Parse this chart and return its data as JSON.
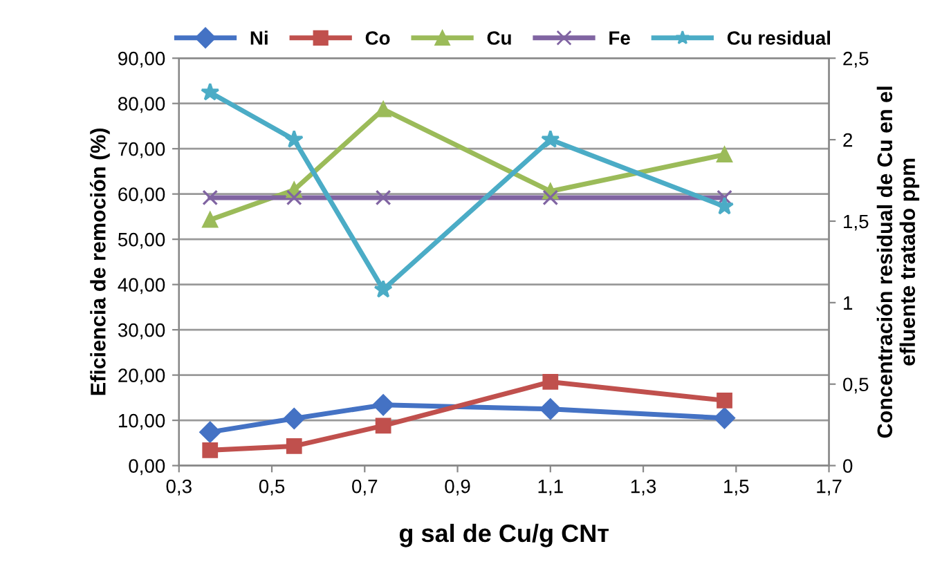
{
  "chart_data": {
    "type": "line",
    "xlabel": "g sal de Cu/g CNт",
    "ylabel": "Eficiencia de remoción (%)",
    "y2label": "Concentración residual de Cu en el\nefluente tratado ppm",
    "x": [
      0.367,
      0.548,
      0.74,
      1.1,
      1.475
    ],
    "series": [
      {
        "name": "Ni",
        "color": "#4472c4",
        "marker": "diamond",
        "values": [
          7.4,
          10.4,
          13.4,
          12.5,
          10.5
        ]
      },
      {
        "name": "Co",
        "color": "#c0504d",
        "marker": "square",
        "values": [
          3.4,
          4.3,
          8.8,
          18.5,
          14.4
        ]
      },
      {
        "name": "Cu",
        "color": "#9bbb59",
        "marker": "triangle",
        "values": [
          54.3,
          60.9,
          78.7,
          60.6,
          68.7
        ]
      },
      {
        "name": "Fe",
        "color": "#8064a2",
        "marker": "cross",
        "values": [
          59.2,
          59.2,
          59.2,
          59.2,
          59.2
        ]
      },
      {
        "name": "Cu residual",
        "color": "#4bacc6",
        "marker": "star",
        "axis": "y2",
        "values": [
          2.29,
          2.0,
          1.08,
          2.0,
          1.59
        ]
      }
    ],
    "xlim": [
      0.3,
      1.7
    ],
    "xticks": [
      {
        "value": 0.3,
        "label": "0,3"
      },
      {
        "value": 0.5,
        "label": "0,5"
      },
      {
        "value": 0.7,
        "label": "0,7"
      },
      {
        "value": 0.9,
        "label": "0,9"
      },
      {
        "value": 1.1,
        "label": "1,1"
      },
      {
        "value": 1.3,
        "label": "1,3"
      },
      {
        "value": 1.5,
        "label": "1,5"
      },
      {
        "value": 1.7,
        "label": "1,7"
      }
    ],
    "ylim": [
      0,
      90
    ],
    "yticks": [
      {
        "value": 0,
        "label": "0,00"
      },
      {
        "value": 10,
        "label": "10,00"
      },
      {
        "value": 20,
        "label": "20,00"
      },
      {
        "value": 30,
        "label": "30,00"
      },
      {
        "value": 40,
        "label": "40,00"
      },
      {
        "value": 50,
        "label": "50,00"
      },
      {
        "value": 60,
        "label": "60,00"
      },
      {
        "value": 70,
        "label": "70,00"
      },
      {
        "value": 80,
        "label": "80,00"
      },
      {
        "value": 90,
        "label": "90,00"
      }
    ],
    "y2lim": [
      0,
      2.5
    ],
    "y2ticks": [
      0,
      {
        "value": 0.5,
        "label": "0,5"
      },
      1,
      {
        "value": 1.5,
        "label": "1,5"
      },
      2,
      {
        "value": 2.5,
        "label": "2,5"
      }
    ],
    "grid": "y",
    "legend": "top",
    "line_style": "solid"
  }
}
